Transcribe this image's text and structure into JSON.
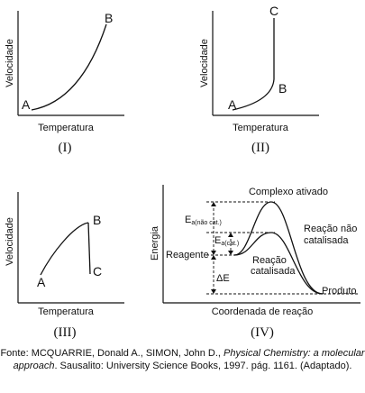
{
  "panels": [
    {
      "roman": "(I)",
      "xlabel": "Temperatura",
      "ylabel": "Velocidade",
      "labels": [
        "A",
        "B"
      ]
    },
    {
      "roman": "(II)",
      "xlabel": "Temperatura",
      "ylabel": "Velocidade",
      "labels": [
        "A",
        "B",
        "C"
      ]
    },
    {
      "roman": "(III)",
      "xlabel": "Temperatura",
      "ylabel": "Velocidade",
      "labels": [
        "A",
        "B",
        "C"
      ]
    },
    {
      "roman": "(IV)",
      "xlabel": "Coordenada de reação",
      "ylabel": "Energia",
      "complexo": "Complexo ativado",
      "nao_cat_line1": "Reação não",
      "nao_cat_line2": "catalisada",
      "cat_line1": "Reação",
      "cat_line2": "catalisada",
      "reagente": "Reagente",
      "produto": "Produto",
      "ea_nao_cat_main": "E",
      "ea_nao_cat_sub": "a(não cat.)",
      "ea_cat_main": "E",
      "ea_cat_sub": "a(cat.)",
      "delta_e": "ΔE"
    }
  ],
  "caption": {
    "prefix": "Fonte: MCQUARRIE, Donald A., SIMON, John D., ",
    "title": "Physical Chemistry: a molecular approach",
    "suffix": ". Sausalito: University Science Books, 1997. pág. 1161. (Adaptado)."
  }
}
